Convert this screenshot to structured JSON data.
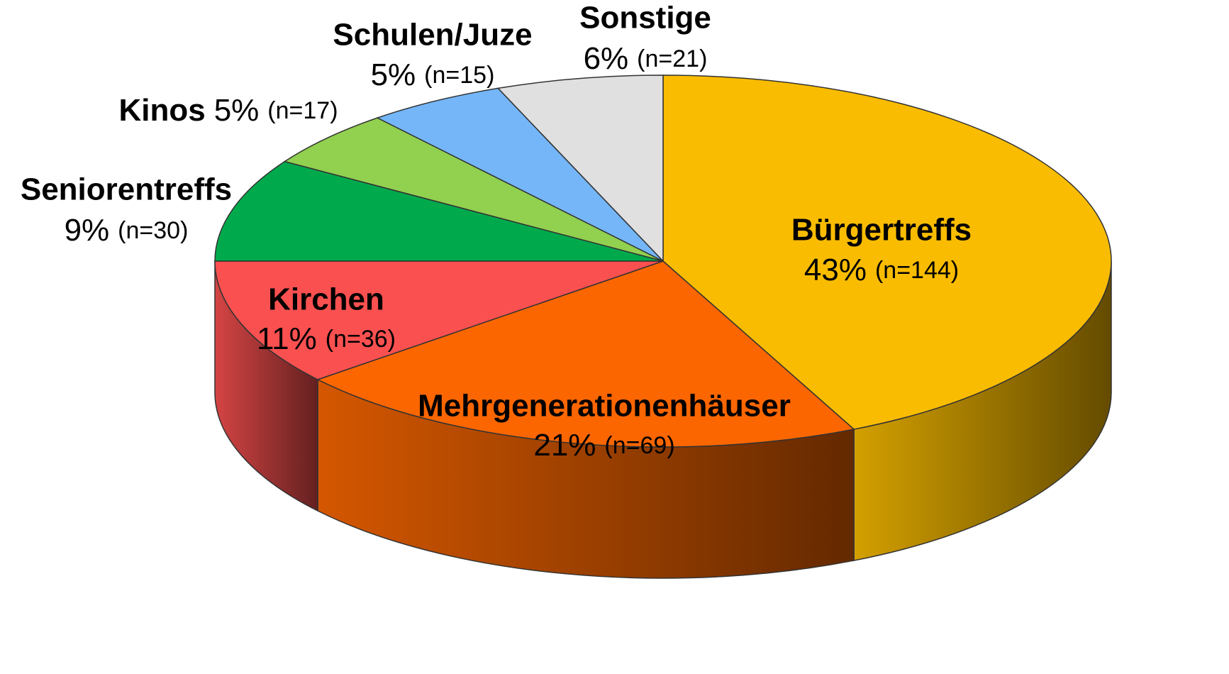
{
  "chart_data": {
    "type": "pie3d",
    "categories": [
      "Bürgertreffs",
      "Mehrgenerationenhäuser",
      "Kirchen",
      "Seniorentreffs",
      "Kinos",
      "Schulen/Juze",
      "Sonstige"
    ],
    "values": [
      43,
      21,
      11,
      9,
      5,
      5,
      6
    ],
    "value_labels": [
      "43%",
      "21%",
      "11%",
      "9%",
      "5%",
      "5%",
      "6%"
    ],
    "counts": [
      144,
      69,
      36,
      30,
      17,
      15,
      21
    ],
    "count_labels": [
      "(n=144)",
      "(n=69)",
      "(n=36)",
      "(n=30)",
      "(n=17)",
      "(n=15)",
      "(n=21)"
    ],
    "colors": [
      "#f9bc00",
      "#fb6600",
      "#fb5050",
      "#00aa4c",
      "#92d050",
      "#74b6f8",
      "#e0e0e0"
    ]
  }
}
